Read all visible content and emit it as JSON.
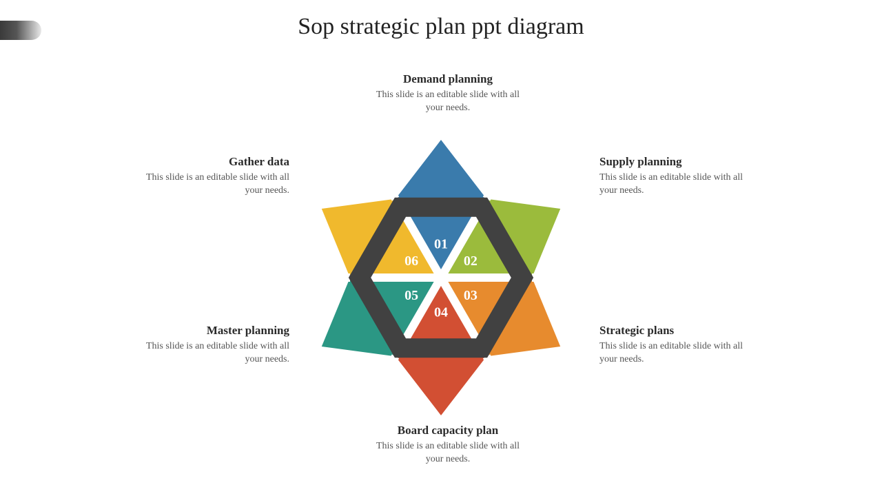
{
  "slide": {
    "title": "Sop strategic plan ppt diagram",
    "background": "#ffffff",
    "title_color": "#222222",
    "title_fontsize": 34
  },
  "hexagon": {
    "type": "hexagon-6-segment",
    "ring_color": "#414141",
    "ring_stroke_width": 28,
    "gap_color": "#ffffff",
    "segments": [
      {
        "num": "01",
        "color": "#3a7bac",
        "inner_color": "#3a7bac",
        "label_title": "Demand planning",
        "label_desc": "This slide is an editable slide with all your needs."
      },
      {
        "num": "02",
        "color": "#9bbb3c",
        "inner_color": "#9bbb3c",
        "label_title": "Supply planning",
        "label_desc": "This slide is an editable slide with all your needs."
      },
      {
        "num": "03",
        "color": "#e78b2e",
        "inner_color": "#e78b2e",
        "label_title": "Strategic plans",
        "label_desc": "This slide is an editable slide with all your needs."
      },
      {
        "num": "04",
        "color": "#d24f33",
        "inner_color": "#d24f33",
        "label_title": "Board capacity plan",
        "label_desc": "This slide is an editable slide with all your needs."
      },
      {
        "num": "05",
        "color": "#2b9784",
        "inner_color": "#2b9784",
        "label_title": "Master planning",
        "label_desc": "This slide is an editable slide with all your needs."
      },
      {
        "num": "06",
        "color": "#f0b92d",
        "inner_color": "#f0b92d",
        "label_title": "Gather data",
        "label_desc": "This slide is an editable slide with all your needs."
      }
    ],
    "number_fontsize": 20,
    "number_color": "#ffffff",
    "label_title_fontsize": 17,
    "label_desc_fontsize": 14,
    "label_desc_color": "#555555"
  }
}
